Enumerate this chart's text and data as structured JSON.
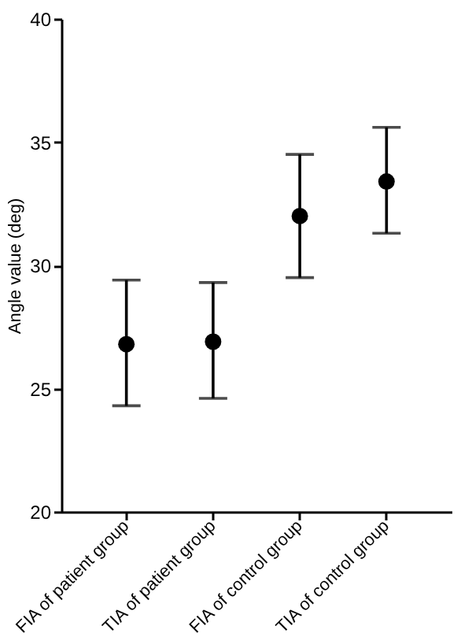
{
  "chart_data": {
    "type": "scatter",
    "ylabel": "Angle value (deg)",
    "categories": [
      "FIA of patient group",
      "TIA of patient group",
      "FIA of control group",
      "TIA of control group"
    ],
    "values": [
      26.8,
      26.9,
      32.0,
      33.4
    ],
    "errors": [
      [
        24.3,
        29.4
      ],
      [
        24.6,
        29.3
      ],
      [
        29.5,
        34.5
      ],
      [
        31.3,
        35.6
      ]
    ],
    "color": "#000000",
    "marker": "circle",
    "ylim": [
      20,
      40
    ],
    "yticks": [
      20,
      25,
      30,
      35,
      40
    ],
    "grid": false
  }
}
